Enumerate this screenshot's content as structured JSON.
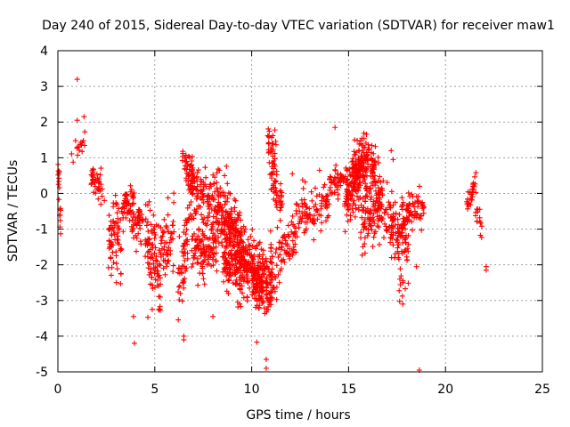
{
  "chart_data": {
    "type": "scatter",
    "title": "Day 240 of 2015, Sidereal Day-to-day VTEC variation (SDTVAR) for receiver maw1",
    "xlabel": "GPS time / hours",
    "ylabel": "SDTVAR / TECUs",
    "xlim": [
      0,
      25
    ],
    "ylim": [
      -5,
      4
    ],
    "xticks": [
      "0",
      "5",
      "10",
      "15",
      "20",
      "25"
    ],
    "yticks": [
      "-5",
      "-4",
      "-3",
      "-2",
      "-1",
      "0",
      "1",
      "2",
      "3",
      "4"
    ],
    "grid": true,
    "marker": "+",
    "series": [
      {
        "name": "maw1",
        "color": "#ff0000",
        "clusters": [
          {
            "x_start": 0.0,
            "x_end": 0.15,
            "y_start": 0.8,
            "y_end": -0.9,
            "spread": 0.5,
            "count": 18
          },
          {
            "x_start": 0.7,
            "x_end": 1.4,
            "y_start": 1.0,
            "y_end": 1.5,
            "spread": 0.5,
            "count": 16
          },
          {
            "x_start": 1.7,
            "x_end": 2.3,
            "y_start": 0.5,
            "y_end": 0.1,
            "spread": 0.4,
            "count": 40
          },
          {
            "x_start": 2.6,
            "x_end": 3.3,
            "y_start": -1.0,
            "y_end": -1.6,
            "spread": 1.3,
            "count": 70
          },
          {
            "x_start": 3.3,
            "x_end": 4.0,
            "y_start": -0.4,
            "y_end": -0.2,
            "spread": 0.6,
            "count": 50
          },
          {
            "x_start": 3.8,
            "x_end": 4.4,
            "y_start": -1.0,
            "y_end": -0.7,
            "spread": 0.6,
            "count": 40
          },
          {
            "x_start": 4.5,
            "x_end": 5.3,
            "y_start": -1.3,
            "y_end": -2.4,
            "spread": 1.4,
            "count": 90
          },
          {
            "x_start": 5.3,
            "x_end": 6.0,
            "y_start": -1.5,
            "y_end": -1.0,
            "spread": 1.0,
            "count": 55
          },
          {
            "x_start": 6.2,
            "x_end": 6.7,
            "y_start": -2.6,
            "y_end": -1.2,
            "spread": 1.2,
            "count": 50
          },
          {
            "x_start": 6.4,
            "x_end": 7.0,
            "y_start": 1.1,
            "y_end": 0.5,
            "spread": 0.5,
            "count": 30
          },
          {
            "x_start": 6.6,
            "x_end": 8.3,
            "y_start": 0.2,
            "y_end": -0.4,
            "spread": 1.0,
            "count": 140
          },
          {
            "x_start": 6.9,
            "x_end": 8.2,
            "y_start": -1.6,
            "y_end": -1.5,
            "spread": 0.9,
            "count": 110
          },
          {
            "x_start": 8.2,
            "x_end": 9.4,
            "y_start": -0.3,
            "y_end": -1.3,
            "spread": 1.1,
            "count": 180
          },
          {
            "x_start": 8.5,
            "x_end": 9.8,
            "y_start": -1.8,
            "y_end": -2.3,
            "spread": 1.1,
            "count": 140
          },
          {
            "x_start": 9.4,
            "x_end": 10.6,
            "y_start": -1.5,
            "y_end": -2.6,
            "spread": 1.0,
            "count": 130
          },
          {
            "x_start": 10.0,
            "x_end": 11.3,
            "y_start": -2.4,
            "y_end": -2.6,
            "spread": 1.1,
            "count": 150
          },
          {
            "x_start": 10.8,
            "x_end": 11.3,
            "y_start": 1.5,
            "y_end": 0.8,
            "spread": 0.8,
            "count": 40
          },
          {
            "x_start": 11.0,
            "x_end": 11.6,
            "y_start": 0.2,
            "y_end": -0.3,
            "spread": 0.6,
            "count": 40
          },
          {
            "x_start": 11.3,
            "x_end": 12.3,
            "y_start": -1.8,
            "y_end": -1.1,
            "spread": 0.7,
            "count": 60
          },
          {
            "x_start": 12.3,
            "x_end": 14.0,
            "y_start": -0.6,
            "y_end": -0.3,
            "spread": 0.7,
            "count": 90
          },
          {
            "x_start": 14.0,
            "x_end": 14.8,
            "y_start": 0.3,
            "y_end": 0.4,
            "spread": 0.5,
            "count": 45
          },
          {
            "x_start": 14.8,
            "x_end": 15.6,
            "y_start": -0.2,
            "y_end": 0.5,
            "spread": 0.9,
            "count": 120
          },
          {
            "x_start": 15.2,
            "x_end": 16.4,
            "y_start": 0.8,
            "y_end": 0.8,
            "spread": 0.9,
            "count": 140
          },
          {
            "x_start": 15.6,
            "x_end": 16.6,
            "y_start": -0.7,
            "y_end": -0.4,
            "spread": 0.9,
            "count": 90
          },
          {
            "x_start": 16.5,
            "x_end": 17.6,
            "y_start": -0.1,
            "y_end": -1.3,
            "spread": 1.0,
            "count": 90
          },
          {
            "x_start": 17.5,
            "x_end": 18.1,
            "y_start": -1.2,
            "y_end": -1.2,
            "spread": 1.6,
            "count": 60
          },
          {
            "x_start": 17.7,
            "x_end": 18.9,
            "y_start": -0.6,
            "y_end": -0.3,
            "spread": 0.6,
            "count": 70
          },
          {
            "x_start": 21.0,
            "x_end": 21.6,
            "y_start": -0.3,
            "y_end": 0.0,
            "spread": 0.5,
            "count": 30
          },
          {
            "x_start": 21.5,
            "x_end": 21.9,
            "y_start": -0.4,
            "y_end": -0.9,
            "spread": 0.4,
            "count": 15
          }
        ],
        "outliers": [
          [
            1.0,
            3.2
          ],
          [
            1.0,
            2.05
          ],
          [
            1.35,
            2.15
          ],
          [
            3.9,
            -3.45
          ],
          [
            3.95,
            -4.2
          ],
          [
            6.5,
            -4.0
          ],
          [
            6.5,
            -4.1
          ],
          [
            8.0,
            -3.45
          ],
          [
            7.7,
            -2.0
          ],
          [
            10.75,
            -4.9
          ],
          [
            10.75,
            -4.65
          ],
          [
            12.1,
            0.55
          ],
          [
            13.5,
            0.65
          ],
          [
            14.3,
            1.85
          ],
          [
            17.2,
            1.2
          ],
          [
            17.3,
            0.95
          ],
          [
            17.8,
            -2.5
          ],
          [
            17.8,
            -3.1
          ],
          [
            18.5,
            -2.05
          ],
          [
            18.65,
            -4.95
          ],
          [
            22.1,
            -2.05
          ],
          [
            22.1,
            -2.15
          ],
          [
            2.4,
            -0.2
          ],
          [
            8.6,
            0.5
          ],
          [
            13.2,
            -1.3
          ]
        ]
      }
    ]
  }
}
